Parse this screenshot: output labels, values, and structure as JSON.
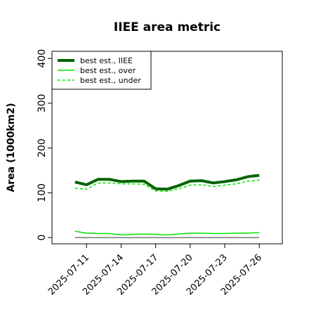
{
  "chart_data": {
    "type": "line",
    "title": "IIEE area metric",
    "ylabel": "Area (1000km2)",
    "x": [
      "2025-07-10",
      "2025-07-11",
      "2025-07-12",
      "2025-07-13",
      "2025-07-14",
      "2025-07-15",
      "2025-07-16",
      "2025-07-17",
      "2025-07-18",
      "2025-07-19",
      "2025-07-20",
      "2025-07-21",
      "2025-07-22",
      "2025-07-23",
      "2025-07-24",
      "2025-07-25",
      "2025-07-26"
    ],
    "series": [
      {
        "name": "best est., IIEE",
        "color": "#006400",
        "width": 4,
        "dash": "solid",
        "values": [
          124,
          118,
          130,
          130,
          125,
          126,
          126,
          109,
          108,
          116,
          126,
          127,
          122,
          125,
          129,
          136,
          139
        ]
      },
      {
        "name": "best est., over",
        "color": "#00e600",
        "width": 1.5,
        "dash": "solid",
        "values": [
          14,
          10,
          9,
          9,
          6,
          7,
          8,
          7,
          6,
          8,
          10,
          10,
          9,
          9,
          10,
          10,
          11
        ]
      },
      {
        "name": "best est., under",
        "color": "#00e600",
        "width": 1.5,
        "dash": "dashed",
        "values": [
          110,
          108,
          122,
          122,
          120,
          120,
          119,
          104,
          103,
          109,
          117,
          118,
          114,
          117,
          120,
          126,
          128
        ]
      },
      {
        "color": "#777777",
        "width": 1.5,
        "dash": "solid",
        "values": [
          0,
          0,
          0,
          0,
          0,
          0,
          0,
          0,
          0,
          0,
          0,
          0,
          0,
          0,
          0,
          0,
          0
        ]
      }
    ],
    "xlim": [
      "2025-07-08",
      "2025-07-28"
    ],
    "xticks": [
      "2025-07-11",
      "2025-07-14",
      "2025-07-17",
      "2025-07-20",
      "2025-07-23",
      "2025-07-26"
    ],
    "ylim": [
      -14,
      416
    ],
    "yticks": [
      0,
      100,
      200,
      300,
      400
    ],
    "legend": "upper left"
  }
}
